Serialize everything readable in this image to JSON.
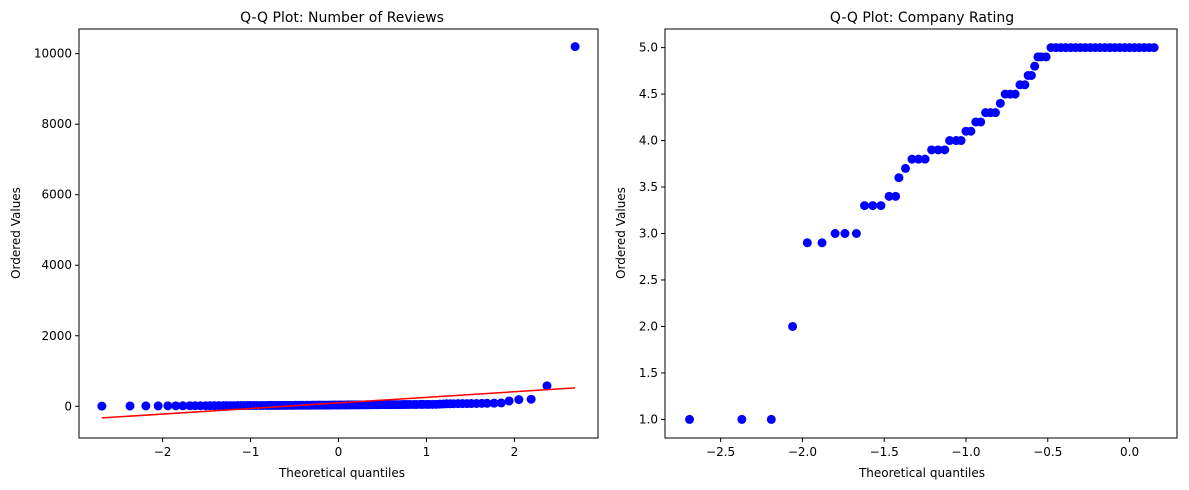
{
  "chart_data": [
    {
      "type": "scatter",
      "title": "Q-Q Plot: Number of Reviews",
      "xlabel": "Theoretical quantiles",
      "ylabel": "Ordered Values",
      "xlim": [
        -2.95,
        2.95
      ],
      "ylim": [
        -900,
        10700
      ],
      "xticks": [
        -2,
        -1,
        0,
        1,
        2
      ],
      "xtick_labels": [
        "−2",
        "−1",
        "0",
        "1",
        "2"
      ],
      "yticks": [
        0,
        2000,
        4000,
        6000,
        8000,
        10000
      ],
      "ytick_labels": [
        "0",
        "2000",
        "4000",
        "6000",
        "8000",
        "10000"
      ],
      "grid": false,
      "series": [
        {
          "kind": "points",
          "color": "#0000ff",
          "points": [
            [
              -2.69,
              5
            ],
            [
              -2.37,
              8
            ],
            [
              -2.19,
              10
            ],
            [
              -2.05,
              10
            ],
            [
              -1.94,
              12
            ],
            [
              -1.85,
              12
            ],
            [
              -1.77,
              14
            ],
            [
              -1.69,
              15
            ],
            [
              -1.63,
              15
            ],
            [
              -1.57,
              16
            ],
            [
              -1.51,
              16
            ],
            [
              -1.46,
              17
            ],
            [
              -1.41,
              17
            ],
            [
              -1.36,
              18
            ],
            [
              -1.31,
              18
            ],
            [
              -1.27,
              18
            ],
            [
              -1.23,
              19
            ],
            [
              -1.19,
              19
            ],
            [
              -1.15,
              20
            ],
            [
              -1.11,
              20
            ],
            [
              -1.07,
              20
            ],
            [
              -1.03,
              21
            ],
            [
              -1.0,
              21
            ],
            [
              -0.96,
              22
            ],
            [
              -0.93,
              22
            ],
            [
              -0.89,
              22
            ],
            [
              -0.86,
              23
            ],
            [
              -0.82,
              23
            ],
            [
              -0.79,
              24
            ],
            [
              -0.76,
              24
            ],
            [
              -0.73,
              24
            ],
            [
              -0.7,
              25
            ],
            [
              -0.67,
              25
            ],
            [
              -0.64,
              26
            ],
            [
              -0.61,
              26
            ],
            [
              -0.58,
              26
            ],
            [
              -0.55,
              27
            ],
            [
              -0.52,
              27
            ],
            [
              -0.49,
              28
            ],
            [
              -0.46,
              28
            ],
            [
              -0.43,
              28
            ],
            [
              -0.4,
              29
            ],
            [
              -0.37,
              29
            ],
            [
              -0.35,
              30
            ],
            [
              -0.32,
              30
            ],
            [
              -0.29,
              31
            ],
            [
              -0.26,
              31
            ],
            [
              -0.23,
              32
            ],
            [
              -0.21,
              32
            ],
            [
              -0.18,
              33
            ],
            [
              -0.15,
              33
            ],
            [
              -0.12,
              34
            ],
            [
              -0.1,
              34
            ],
            [
              -0.07,
              35
            ],
            [
              -0.04,
              35
            ],
            [
              -0.01,
              36
            ],
            [
              0.01,
              36
            ],
            [
              0.04,
              37
            ],
            [
              0.07,
              37
            ],
            [
              0.1,
              38
            ],
            [
              0.12,
              38
            ],
            [
              0.15,
              39
            ],
            [
              0.18,
              39
            ],
            [
              0.21,
              40
            ],
            [
              0.23,
              40
            ],
            [
              0.26,
              41
            ],
            [
              0.29,
              41
            ],
            [
              0.32,
              42
            ],
            [
              0.35,
              42
            ],
            [
              0.37,
              43
            ],
            [
              0.4,
              43
            ],
            [
              0.43,
              44
            ],
            [
              0.46,
              44
            ],
            [
              0.49,
              45
            ],
            [
              0.52,
              45
            ],
            [
              0.55,
              46
            ],
            [
              0.58,
              46
            ],
            [
              0.61,
              47
            ],
            [
              0.64,
              47
            ],
            [
              0.67,
              48
            ],
            [
              0.7,
              48
            ],
            [
              0.73,
              49
            ],
            [
              0.76,
              49
            ],
            [
              0.79,
              50
            ],
            [
              0.82,
              50
            ],
            [
              0.86,
              51
            ],
            [
              0.89,
              51
            ],
            [
              0.93,
              52
            ],
            [
              0.96,
              52
            ],
            [
              1.0,
              53
            ],
            [
              1.03,
              53
            ],
            [
              1.07,
              54
            ],
            [
              1.11,
              55
            ],
            [
              1.15,
              60
            ],
            [
              1.19,
              65
            ],
            [
              1.23,
              70
            ],
            [
              1.27,
              70
            ],
            [
              1.31,
              72
            ],
            [
              1.36,
              74
            ],
            [
              1.41,
              75
            ],
            [
              1.46,
              76
            ],
            [
              1.51,
              78
            ],
            [
              1.57,
              80
            ],
            [
              1.63,
              82
            ],
            [
              1.69,
              85
            ],
            [
              1.77,
              88
            ],
            [
              1.85,
              95
            ],
            [
              1.94,
              150
            ],
            [
              2.05,
              190
            ],
            [
              2.19,
              200
            ],
            [
              2.37,
              580
            ],
            [
              2.69,
              10200
            ]
          ]
        },
        {
          "kind": "fit-line",
          "color": "#ff0000",
          "points": [
            [
              -2.69,
              -330
            ],
            [
              2.69,
              520
            ]
          ]
        }
      ]
    },
    {
      "type": "scatter",
      "title": "Q-Q Plot: Company Rating",
      "xlabel": "Theoretical quantiles",
      "ylabel": "Ordered Values",
      "xlim": [
        -2.84,
        0.29
      ],
      "ylim": [
        0.8,
        5.2
      ],
      "xticks": [
        -2.5,
        -2.0,
        -1.5,
        -1.0,
        -0.5,
        0.0
      ],
      "xtick_labels": [
        "−2.5",
        "−2.0",
        "−1.5",
        "−1.0",
        "−0.5",
        "0.0"
      ],
      "yticks": [
        1.0,
        1.5,
        2.0,
        2.5,
        3.0,
        3.5,
        4.0,
        4.5,
        5.0
      ],
      "ytick_labels": [
        "1.0",
        "1.5",
        "2.0",
        "2.5",
        "3.0",
        "3.5",
        "4.0",
        "4.5",
        "5.0"
      ],
      "grid": false,
      "series": [
        {
          "kind": "points",
          "color": "#0000ff",
          "points": [
            [
              -2.69,
              1.0
            ],
            [
              -2.37,
              1.0
            ],
            [
              -2.19,
              1.0
            ],
            [
              -2.06,
              2.0
            ],
            [
              -1.97,
              2.9
            ],
            [
              -1.88,
              2.9
            ],
            [
              -1.8,
              3.0
            ],
            [
              -1.74,
              3.0
            ],
            [
              -1.67,
              3.0
            ],
            [
              -1.62,
              3.3
            ],
            [
              -1.57,
              3.3
            ],
            [
              -1.52,
              3.3
            ],
            [
              -1.47,
              3.4
            ],
            [
              -1.43,
              3.4
            ],
            [
              -1.41,
              3.6
            ],
            [
              -1.37,
              3.7
            ],
            [
              -1.33,
              3.8
            ],
            [
              -1.29,
              3.8
            ],
            [
              -1.25,
              3.8
            ],
            [
              -1.21,
              3.9
            ],
            [
              -1.17,
              3.9
            ],
            [
              -1.13,
              3.9
            ],
            [
              -1.1,
              4.0
            ],
            [
              -1.06,
              4.0
            ],
            [
              -1.03,
              4.0
            ],
            [
              -1.0,
              4.1
            ],
            [
              -0.97,
              4.1
            ],
            [
              -0.94,
              4.2
            ],
            [
              -0.91,
              4.2
            ],
            [
              -0.88,
              4.3
            ],
            [
              -0.85,
              4.3
            ],
            [
              -0.82,
              4.3
            ],
            [
              -0.79,
              4.4
            ],
            [
              -0.76,
              4.5
            ],
            [
              -0.73,
              4.5
            ],
            [
              -0.7,
              4.5
            ],
            [
              -0.67,
              4.6
            ],
            [
              -0.64,
              4.6
            ],
            [
              -0.62,
              4.7
            ],
            [
              -0.6,
              4.7
            ],
            [
              -0.58,
              4.8
            ],
            [
              -0.56,
              4.9
            ],
            [
              -0.54,
              4.9
            ],
            [
              -0.51,
              4.9
            ],
            [
              -0.48,
              5.0
            ],
            [
              -0.45,
              5.0
            ],
            [
              -0.42,
              5.0
            ],
            [
              -0.39,
              5.0
            ],
            [
              -0.36,
              5.0
            ],
            [
              -0.33,
              5.0
            ],
            [
              -0.3,
              5.0
            ],
            [
              -0.27,
              5.0
            ],
            [
              -0.24,
              5.0
            ],
            [
              -0.21,
              5.0
            ],
            [
              -0.18,
              5.0
            ],
            [
              -0.15,
              5.0
            ],
            [
              -0.12,
              5.0
            ],
            [
              -0.09,
              5.0
            ],
            [
              -0.06,
              5.0
            ],
            [
              -0.03,
              5.0
            ],
            [
              0.0,
              5.0
            ],
            [
              0.03,
              5.0
            ],
            [
              0.06,
              5.0
            ],
            [
              0.09,
              5.0
            ],
            [
              0.12,
              5.0
            ],
            [
              0.15,
              5.0
            ]
          ]
        }
      ]
    }
  ]
}
